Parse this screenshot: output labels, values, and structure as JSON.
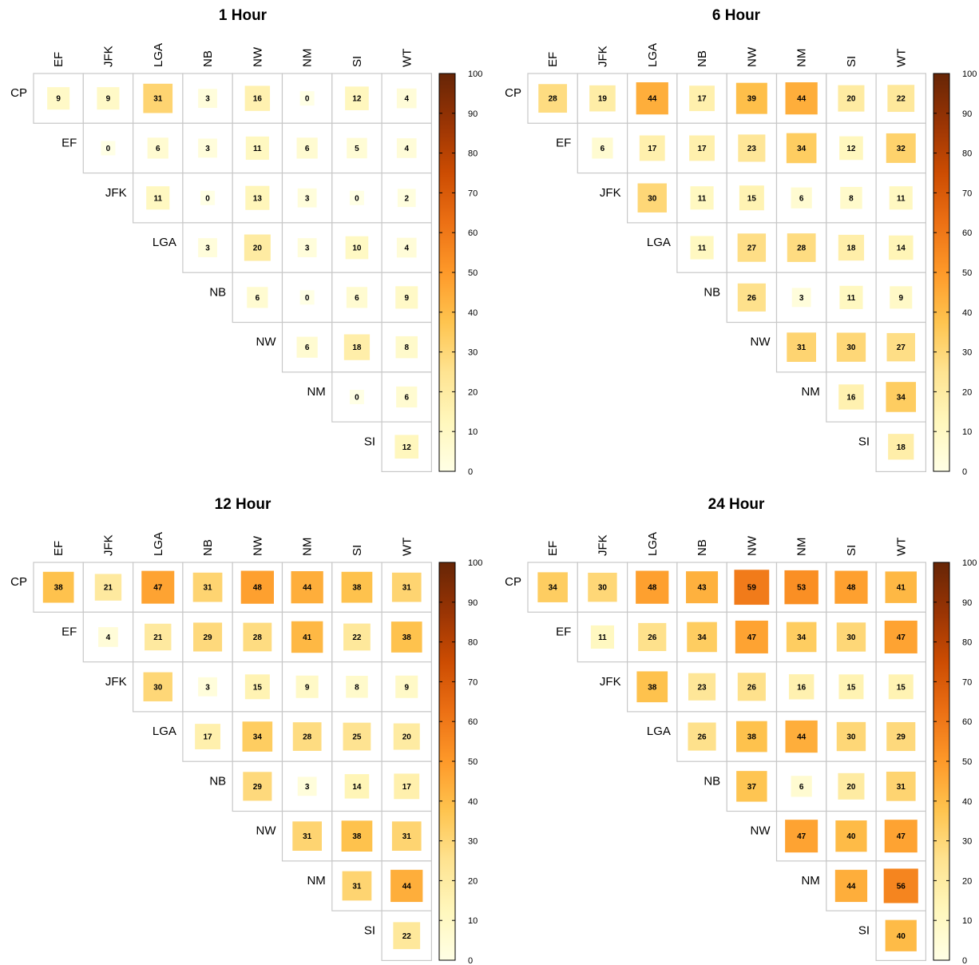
{
  "chart_data": [
    {
      "type": "heatmap",
      "title": "1 Hour",
      "columns": [
        "EF",
        "JFK",
        "LGA",
        "NB",
        "NW",
        "NM",
        "SI",
        "WT"
      ],
      "rows": [
        "CP",
        "EF",
        "JFK",
        "LGA",
        "NB",
        "NW",
        "NM",
        "SI"
      ],
      "values": [
        [
          9,
          9,
          31,
          3,
          16,
          0,
          12,
          4
        ],
        [
          null,
          0,
          6,
          3,
          11,
          6,
          5,
          4
        ],
        [
          null,
          null,
          11,
          0,
          13,
          3,
          0,
          2
        ],
        [
          null,
          null,
          null,
          3,
          20,
          3,
          10,
          4
        ],
        [
          null,
          null,
          null,
          null,
          6,
          0,
          6,
          9
        ],
        [
          null,
          null,
          null,
          null,
          null,
          6,
          18,
          8
        ],
        [
          null,
          null,
          null,
          null,
          null,
          null,
          0,
          6
        ],
        [
          null,
          null,
          null,
          null,
          null,
          null,
          null,
          12
        ]
      ],
      "colorbar": {
        "min": 0,
        "max": 100,
        "ticks": [
          "0",
          "10",
          "20",
          "30",
          "40",
          "50",
          "60",
          "70",
          "80",
          "90",
          "100"
        ]
      }
    },
    {
      "type": "heatmap",
      "title": "6 Hour",
      "columns": [
        "EF",
        "JFK",
        "LGA",
        "NB",
        "NW",
        "NM",
        "SI",
        "WT"
      ],
      "rows": [
        "CP",
        "EF",
        "JFK",
        "LGA",
        "NB",
        "NW",
        "NM",
        "SI"
      ],
      "values": [
        [
          28,
          19,
          44,
          17,
          39,
          44,
          20,
          22
        ],
        [
          null,
          6,
          17,
          17,
          23,
          34,
          12,
          32
        ],
        [
          null,
          null,
          30,
          11,
          15,
          6,
          8,
          11
        ],
        [
          null,
          null,
          null,
          11,
          27,
          28,
          18,
          14
        ],
        [
          null,
          null,
          null,
          null,
          26,
          3,
          11,
          9
        ],
        [
          null,
          null,
          null,
          null,
          null,
          31,
          30,
          27
        ],
        [
          null,
          null,
          null,
          null,
          null,
          null,
          16,
          34
        ],
        [
          null,
          null,
          null,
          null,
          null,
          null,
          null,
          18
        ]
      ],
      "colorbar": {
        "min": 0,
        "max": 100,
        "ticks": [
          "0",
          "10",
          "20",
          "30",
          "40",
          "50",
          "60",
          "70",
          "80",
          "90",
          "100"
        ]
      }
    },
    {
      "type": "heatmap",
      "title": "12 Hour",
      "columns": [
        "EF",
        "JFK",
        "LGA",
        "NB",
        "NW",
        "NM",
        "SI",
        "WT"
      ],
      "rows": [
        "CP",
        "EF",
        "JFK",
        "LGA",
        "NB",
        "NW",
        "NM",
        "SI"
      ],
      "values": [
        [
          38,
          21,
          47,
          31,
          48,
          44,
          38,
          31
        ],
        [
          null,
          4,
          21,
          29,
          28,
          41,
          22,
          38
        ],
        [
          null,
          null,
          30,
          3,
          15,
          9,
          8,
          9
        ],
        [
          null,
          null,
          null,
          17,
          34,
          28,
          25,
          20
        ],
        [
          null,
          null,
          null,
          null,
          29,
          3,
          14,
          17
        ],
        [
          null,
          null,
          null,
          null,
          null,
          31,
          38,
          31
        ],
        [
          null,
          null,
          null,
          null,
          null,
          null,
          31,
          44
        ],
        [
          null,
          null,
          null,
          null,
          null,
          null,
          null,
          22
        ]
      ],
      "colorbar": {
        "min": 0,
        "max": 100,
        "ticks": [
          "0",
          "10",
          "20",
          "30",
          "40",
          "50",
          "60",
          "70",
          "80",
          "90",
          "100"
        ]
      }
    },
    {
      "type": "heatmap",
      "title": "24 Hour",
      "columns": [
        "EF",
        "JFK",
        "LGA",
        "NB",
        "NW",
        "NM",
        "SI",
        "WT"
      ],
      "rows": [
        "CP",
        "EF",
        "JFK",
        "LGA",
        "NB",
        "NW",
        "NM",
        "SI"
      ],
      "values": [
        [
          34,
          30,
          48,
          43,
          59,
          53,
          48,
          41
        ],
        [
          null,
          11,
          26,
          34,
          47,
          34,
          30,
          47
        ],
        [
          null,
          null,
          38,
          23,
          26,
          16,
          15,
          15
        ],
        [
          null,
          null,
          null,
          26,
          38,
          44,
          30,
          29
        ],
        [
          null,
          null,
          null,
          null,
          37,
          6,
          20,
          31
        ],
        [
          null,
          null,
          null,
          null,
          null,
          47,
          40,
          47
        ],
        [
          null,
          null,
          null,
          null,
          null,
          null,
          44,
          56
        ],
        [
          null,
          null,
          null,
          null,
          null,
          null,
          null,
          40
        ]
      ],
      "colorbar": {
        "min": 0,
        "max": 100,
        "ticks": [
          "0",
          "10",
          "20",
          "30",
          "40",
          "50",
          "60",
          "70",
          "80",
          "90",
          "100"
        ]
      }
    }
  ]
}
